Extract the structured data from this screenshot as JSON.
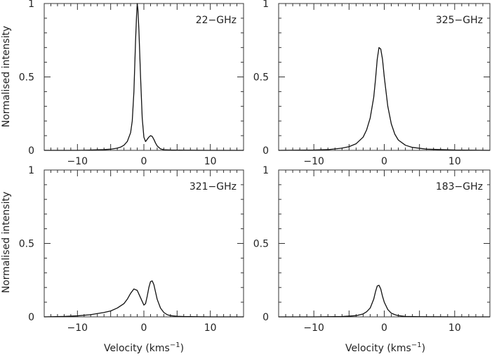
{
  "figure": {
    "ylabel": "Normalised intensity",
    "xlabel": "Velocity (kms",
    "xlabel_sup": "−1",
    "xlabel_close": ")"
  },
  "chart_data": [
    {
      "type": "line",
      "title": "22−GHz",
      "xlim": [
        -15,
        15
      ],
      "ylim": [
        0,
        1
      ],
      "xticks": [
        -10,
        0,
        10
      ],
      "xtick_labels": [
        "−10",
        "0",
        "10"
      ],
      "yticks": [
        0,
        0.5,
        1
      ],
      "ytick_labels": [
        "0",
        "0.5",
        "1"
      ],
      "show_ylabel": true,
      "show_xlabel": false,
      "series": [
        {
          "x": [
            -15,
            -10,
            -8,
            -6,
            -5,
            -4,
            -3.5,
            -3,
            -2.5,
            -2,
            -1.75,
            -1.5,
            -1.25,
            -1.1,
            -1,
            -0.9,
            -0.75,
            -0.5,
            -0.25,
            0,
            0.25,
            0.5,
            0.75,
            1,
            1.25,
            1.5,
            1.75,
            2,
            2.5,
            3,
            4,
            6,
            10,
            15
          ],
          "y": [
            0,
            0,
            0.002,
            0.005,
            0.008,
            0.015,
            0.022,
            0.035,
            0.06,
            0.12,
            0.2,
            0.4,
            0.75,
            0.92,
            1.0,
            0.96,
            0.82,
            0.5,
            0.22,
            0.09,
            0.06,
            0.075,
            0.09,
            0.1,
            0.095,
            0.075,
            0.05,
            0.03,
            0.01,
            0.004,
            0.002,
            0.001,
            0,
            0
          ]
        }
      ]
    },
    {
      "type": "line",
      "title": "325−GHz",
      "xlim": [
        -15,
        15
      ],
      "ylim": [
        0,
        1
      ],
      "xticks": [
        -10,
        0,
        10
      ],
      "xtick_labels": [
        "−10",
        "0",
        "10"
      ],
      "yticks": [
        0,
        0.5,
        1
      ],
      "ytick_labels": [
        "0",
        "0.5",
        "1"
      ],
      "show_ylabel": false,
      "show_xlabel": false,
      "series": [
        {
          "x": [
            -15,
            -10,
            -8,
            -6,
            -5,
            -4,
            -3,
            -2.5,
            -2,
            -1.5,
            -1.25,
            -1,
            -0.75,
            -0.5,
            -0.25,
            0,
            0.25,
            0.5,
            1,
            1.5,
            2,
            3,
            4,
            6,
            10,
            15
          ],
          "y": [
            0,
            0.002,
            0.005,
            0.015,
            0.025,
            0.045,
            0.09,
            0.14,
            0.22,
            0.36,
            0.48,
            0.62,
            0.7,
            0.69,
            0.62,
            0.5,
            0.4,
            0.3,
            0.18,
            0.11,
            0.07,
            0.035,
            0.02,
            0.008,
            0.002,
            0
          ]
        }
      ]
    },
    {
      "type": "line",
      "title": "321−GHz",
      "xlim": [
        -15,
        15
      ],
      "ylim": [
        0,
        1
      ],
      "xticks": [
        -10,
        0,
        10
      ],
      "xtick_labels": [
        "−10",
        "0",
        "10"
      ],
      "yticks": [
        0,
        0.5,
        1
      ],
      "ytick_labels": [
        "0",
        "0.5",
        "1"
      ],
      "show_ylabel": true,
      "show_xlabel": true,
      "series": [
        {
          "x": [
            -15,
            -12,
            -10,
            -8,
            -6,
            -5,
            -4,
            -3,
            -2.5,
            -2,
            -1.5,
            -1,
            -0.5,
            0,
            0.25,
            0.5,
            0.75,
            1,
            1.25,
            1.5,
            1.75,
            2,
            2.5,
            3,
            3.5,
            4,
            5,
            6,
            8,
            10,
            15
          ],
          "y": [
            0,
            0.003,
            0.007,
            0.015,
            0.03,
            0.04,
            0.06,
            0.09,
            0.12,
            0.16,
            0.19,
            0.18,
            0.13,
            0.08,
            0.09,
            0.14,
            0.2,
            0.24,
            0.245,
            0.22,
            0.17,
            0.12,
            0.06,
            0.03,
            0.015,
            0.008,
            0.004,
            0.002,
            0.001,
            0,
            0
          ]
        }
      ]
    },
    {
      "type": "line",
      "title": "183−GHz",
      "xlim": [
        -15,
        15
      ],
      "ylim": [
        0,
        1
      ],
      "xticks": [
        -10,
        0,
        10
      ],
      "xtick_labels": [
        "−10",
        "0",
        "10"
      ],
      "yticks": [
        0,
        0.5,
        1
      ],
      "ytick_labels": [
        "0",
        "0.5",
        "1"
      ],
      "show_ylabel": false,
      "show_xlabel": true,
      "series": [
        {
          "x": [
            -15,
            -10,
            -6,
            -4,
            -3,
            -2.5,
            -2,
            -1.5,
            -1.25,
            -1,
            -0.75,
            -0.5,
            -0.25,
            0,
            0.5,
            1,
            1.5,
            2,
            3,
            5,
            10,
            15
          ],
          "y": [
            0,
            0,
            0.002,
            0.008,
            0.02,
            0.035,
            0.06,
            0.12,
            0.17,
            0.21,
            0.215,
            0.19,
            0.14,
            0.1,
            0.05,
            0.025,
            0.015,
            0.008,
            0.003,
            0.001,
            0,
            0
          ]
        }
      ]
    }
  ]
}
